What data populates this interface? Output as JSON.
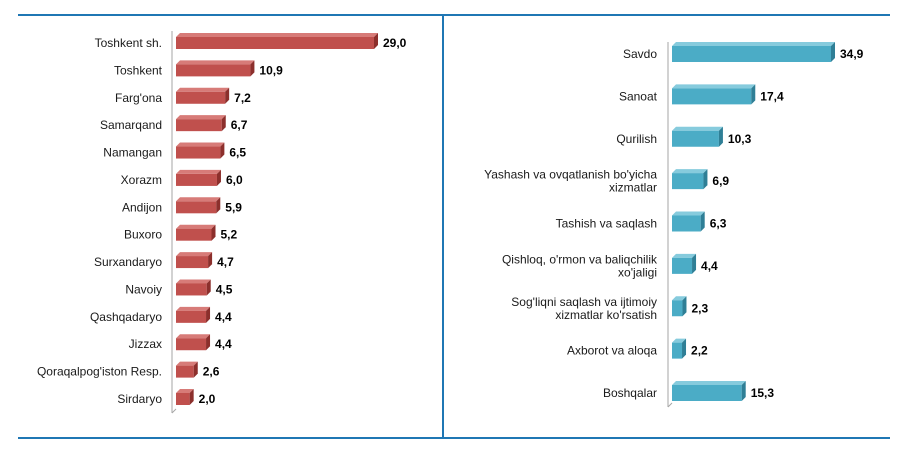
{
  "colors": {
    "frame_line": "#1f77b4",
    "left_bar_front": "#c0504d",
    "left_bar_top": "#d77b78",
    "left_bar_side": "#8c2f2c",
    "right_bar_front": "#4bacc6",
    "right_bar_top": "#86cbdd",
    "right_bar_side": "#2f7f96",
    "axis": "#a6a6a6"
  },
  "chart_data": [
    {
      "type": "bar",
      "orientation": "horizontal",
      "title": "",
      "xlabel": "",
      "ylabel": "",
      "xlim": [
        0,
        29.0
      ],
      "grid": false,
      "legend": "none",
      "categories": [
        "Toshkent sh.",
        "Toshkent",
        "Farg'ona",
        "Samarqand",
        "Namangan",
        "Xorazm",
        "Andijon",
        "Buxoro",
        "Surxandaryo",
        "Navoiy",
        "Qashqadaryo",
        "Jizzax",
        "Qoraqalpog'iston Resp.",
        "Sirdaryo"
      ],
      "values": [
        29.0,
        10.9,
        7.2,
        6.7,
        6.5,
        6.0,
        5.9,
        5.2,
        4.7,
        4.5,
        4.4,
        4.4,
        2.6,
        2.0
      ],
      "value_labels": [
        "29,0",
        "10,9",
        "7,2",
        "6,7",
        "6,5",
        "6,0",
        "5,9",
        "5,2",
        "4,7",
        "4,5",
        "4,4",
        "4,4",
        "2,6",
        "2,0"
      ]
    },
    {
      "type": "bar",
      "orientation": "horizontal",
      "title": "",
      "xlabel": "",
      "ylabel": "",
      "xlim": [
        0,
        34.9
      ],
      "grid": false,
      "legend": "none",
      "categories": [
        [
          "Savdo"
        ],
        [
          "Sanoat"
        ],
        [
          "Qurilish"
        ],
        [
          "Yashash va ovqatlanish bo'yicha",
          "xizmatlar"
        ],
        [
          "Tashish va saqlash"
        ],
        [
          "Qishloq, o'rmon va baliqchilik",
          "xo'jaligi"
        ],
        [
          "Sog'liqni saqlash va ijtimoiy",
          "xizmatlar ko'rsatish"
        ],
        [
          "Axborot va aloqa"
        ],
        [
          "Boshqalar"
        ]
      ],
      "values": [
        34.9,
        17.4,
        10.3,
        6.9,
        6.3,
        4.4,
        2.3,
        2.2,
        15.3
      ],
      "value_labels": [
        "34,9",
        "17,4",
        "10,3",
        "6,9",
        "6,3",
        "4,4",
        "2,3",
        "2,2",
        "15,3"
      ]
    }
  ]
}
